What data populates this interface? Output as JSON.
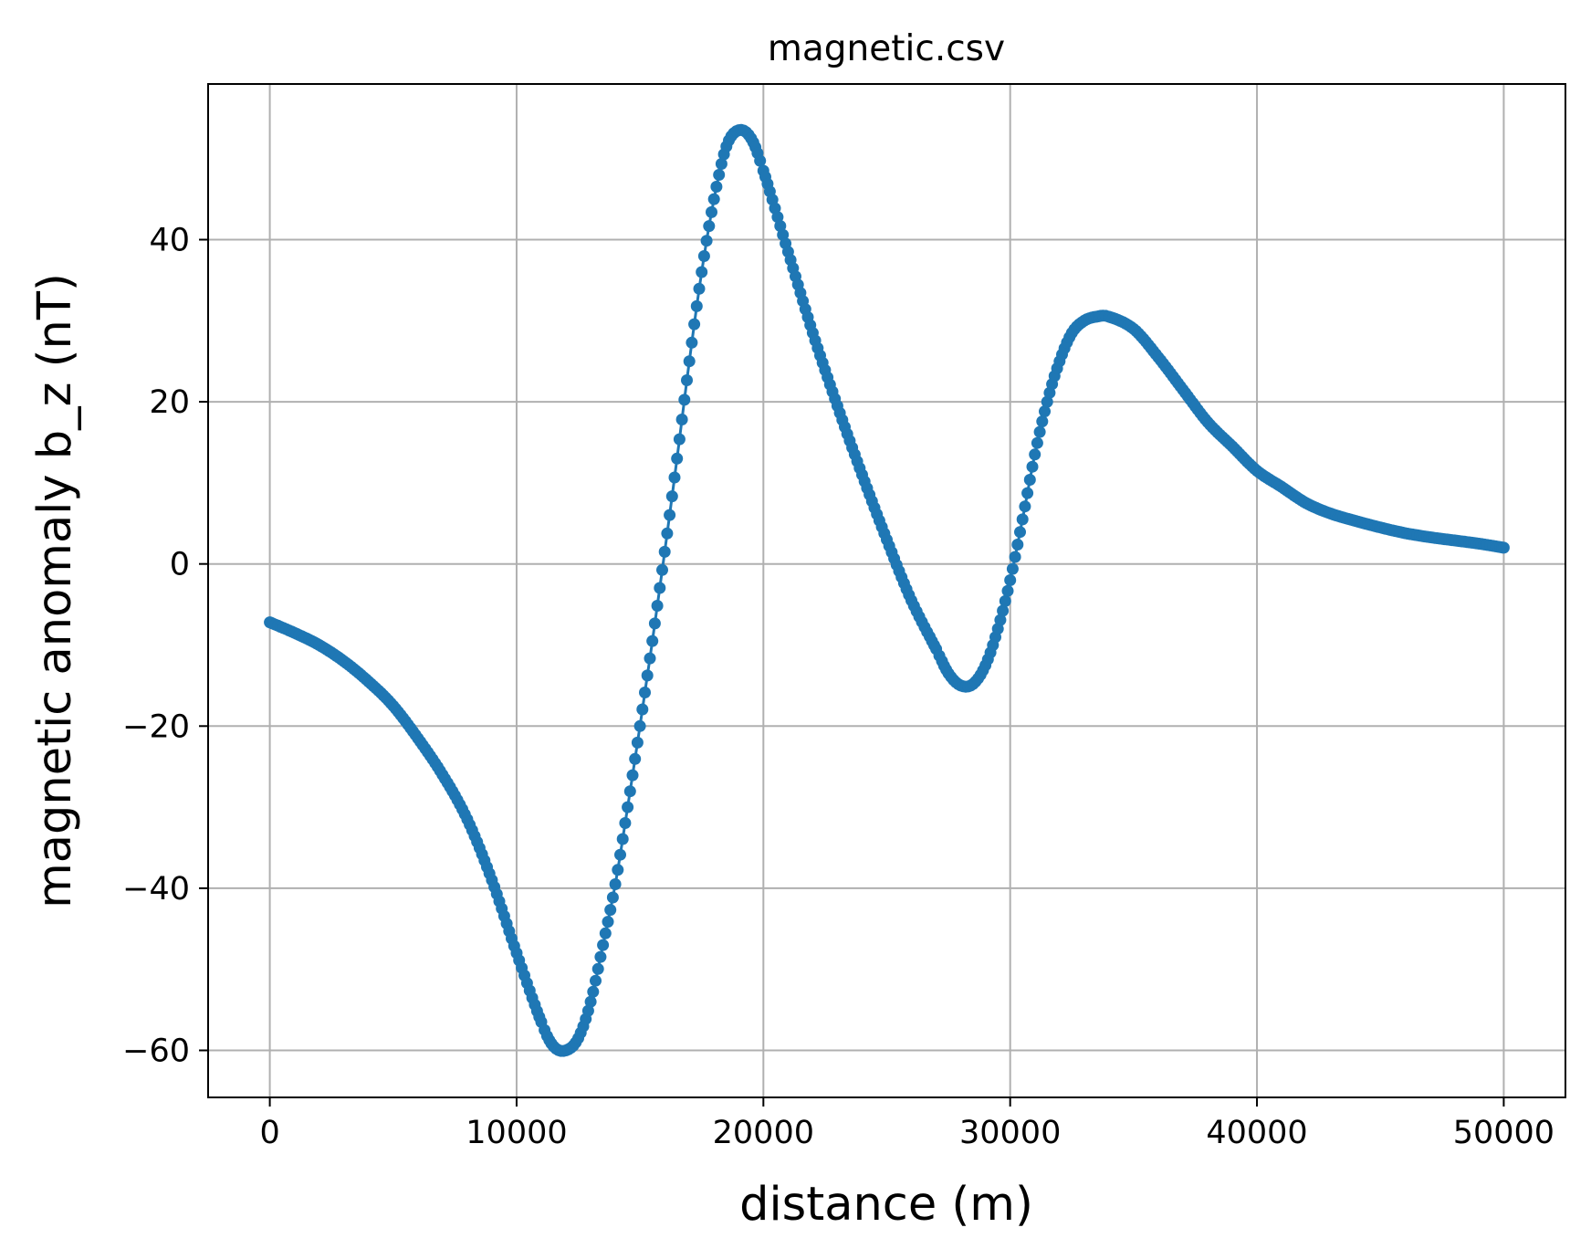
{
  "chart_data": {
    "type": "line",
    "title": "magnetic.csv",
    "xlabel": "distance (m)",
    "ylabel": "magnetic anomaly b_z (nT)",
    "xlim": [
      -2500,
      52500
    ],
    "ylim": [
      -65.8,
      59.2
    ],
    "x_ticks": [
      0,
      10000,
      20000,
      30000,
      40000,
      50000
    ],
    "x_tick_labels": [
      "0",
      "10000",
      "20000",
      "30000",
      "40000",
      "50000"
    ],
    "y_ticks": [
      -60,
      -40,
      -20,
      0,
      20,
      40
    ],
    "y_tick_labels": [
      "−60",
      "−40",
      "−20",
      "0",
      "20",
      "40"
    ],
    "grid": true,
    "marker": "circle",
    "color": "#1f77b4",
    "series": [
      {
        "points": [
          [
            0,
            -7.2
          ],
          [
            1000,
            -8.5
          ],
          [
            2000,
            -10.0
          ],
          [
            3000,
            -12.0
          ],
          [
            4000,
            -14.5
          ],
          [
            5000,
            -17.5
          ],
          [
            6000,
            -21.5
          ],
          [
            7000,
            -26.0
          ],
          [
            8000,
            -31.5
          ],
          [
            9000,
            -39.0
          ],
          [
            10000,
            -48.0
          ],
          [
            11000,
            -56.5
          ],
          [
            11500,
            -59.5
          ],
          [
            12000,
            -60.0
          ],
          [
            12500,
            -58.5
          ],
          [
            13000,
            -54.0
          ],
          [
            13500,
            -47.0
          ],
          [
            14000,
            -39.5
          ],
          [
            14500,
            -30.0
          ],
          [
            15000,
            -20.0
          ],
          [
            15500,
            -9.5
          ],
          [
            16000,
            1.5
          ],
          [
            16500,
            13.0
          ],
          [
            17000,
            25.0
          ],
          [
            17500,
            36.0
          ],
          [
            18000,
            45.0
          ],
          [
            18500,
            51.5
          ],
          [
            19000,
            53.5
          ],
          [
            19500,
            52.5
          ],
          [
            20000,
            48.5
          ],
          [
            21000,
            38.5
          ],
          [
            22000,
            28.5
          ],
          [
            23000,
            19.5
          ],
          [
            24000,
            11.0
          ],
          [
            25000,
            3.0
          ],
          [
            26000,
            -4.5
          ],
          [
            27000,
            -10.5
          ],
          [
            27500,
            -13.5
          ],
          [
            28000,
            -15.0
          ],
          [
            28500,
            -14.8
          ],
          [
            29000,
            -12.5
          ],
          [
            29500,
            -8.0
          ],
          [
            30000,
            -2.0
          ],
          [
            30500,
            5.5
          ],
          [
            31000,
            13.5
          ],
          [
            31500,
            20.0
          ],
          [
            32000,
            25.0
          ],
          [
            32500,
            28.5
          ],
          [
            33000,
            30.0
          ],
          [
            33500,
            30.5
          ],
          [
            34000,
            30.5
          ],
          [
            35000,
            29.0
          ],
          [
            36000,
            25.5
          ],
          [
            37000,
            21.5
          ],
          [
            38000,
            17.5
          ],
          [
            39000,
            14.5
          ],
          [
            40000,
            11.5
          ],
          [
            41000,
            9.5
          ],
          [
            42000,
            7.5
          ],
          [
            43000,
            6.2
          ],
          [
            44000,
            5.3
          ],
          [
            45000,
            4.5
          ],
          [
            46000,
            3.8
          ],
          [
            47000,
            3.3
          ],
          [
            48000,
            2.9
          ],
          [
            49000,
            2.5
          ],
          [
            50000,
            2.0
          ]
        ]
      }
    ]
  }
}
